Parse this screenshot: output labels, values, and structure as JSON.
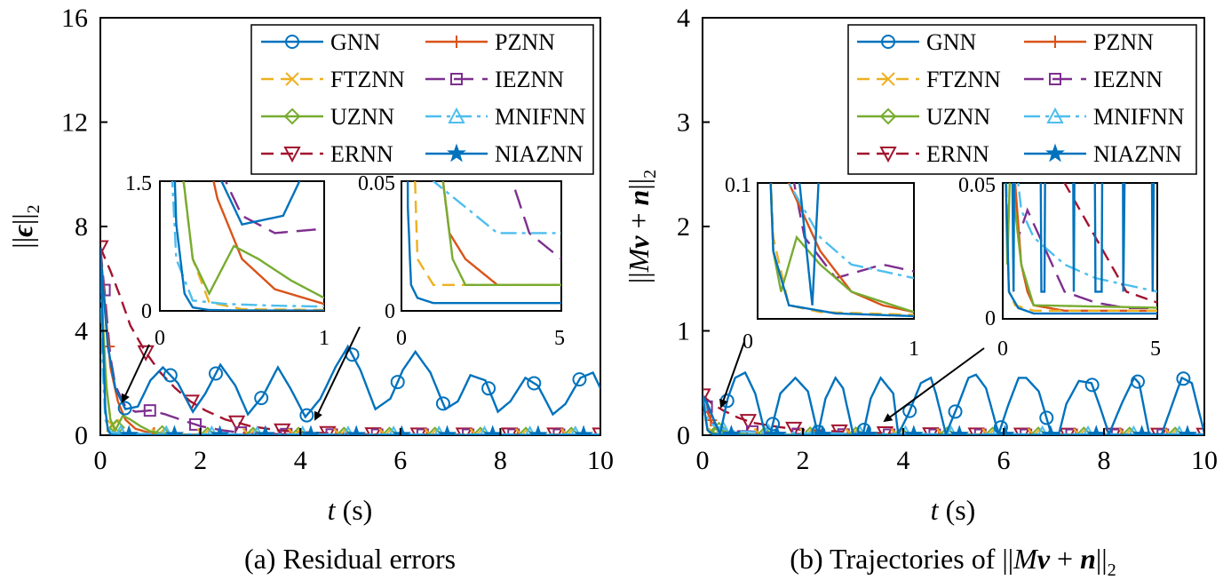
{
  "colors": {
    "GNN": "#0072BD",
    "PZNN": "#D95319",
    "FTZNN": "#EDB120",
    "IEZNN": "#7E2F8E",
    "UZNN": "#77AC30",
    "MNIFNN": "#4DBEEE",
    "ERNN": "#A2142F",
    "NIAZNN": "#0072BD"
  },
  "chart_data": [
    {
      "type": "line",
      "caption": "(a) Residual errors",
      "xlabel": "t (s)",
      "ylabel": "||ϵ||₂",
      "xlim": [
        0,
        10
      ],
      "ylim": [
        0,
        16
      ],
      "xticks": [
        "0",
        "2",
        "4",
        "6",
        "8",
        "10"
      ],
      "yticks": [
        "0",
        "4",
        "8",
        "12",
        "16"
      ],
      "legend": [
        "GNN",
        "PZNN",
        "FTZNN",
        "IEZNN",
        "UZNN",
        "MNIFNN",
        "ERNN",
        "NIAZNN"
      ],
      "legend_position": "top-right",
      "series": [
        {
          "name": "GNN",
          "t": [
            0,
            0.05,
            0.15,
            0.3,
            0.5,
            0.75,
            1.0,
            1.25,
            1.55,
            1.85,
            2.1,
            2.4,
            2.7,
            2.95,
            3.25,
            3.55,
            3.8,
            4.1,
            4.4,
            4.7,
            4.95,
            5.2,
            5.5,
            5.8,
            6.05,
            6.3,
            6.6,
            6.9,
            7.15,
            7.4,
            7.7,
            7.95,
            8.2,
            8.5,
            8.75,
            9.05,
            9.3,
            9.6,
            9.85,
            10
          ],
          "y": [
            7.2,
            5.8,
            3.4,
            1.8,
            1.0,
            1.1,
            2.1,
            2.6,
            2.0,
            0.9,
            1.6,
            2.7,
            1.9,
            0.8,
            1.5,
            2.6,
            1.8,
            0.7,
            1.4,
            2.6,
            3.4,
            2.5,
            1.0,
            1.4,
            2.5,
            3.2,
            2.4,
            1.0,
            1.3,
            2.3,
            2.1,
            0.9,
            1.3,
            2.2,
            1.9,
            0.8,
            1.2,
            2.2,
            2.4,
            1.8
          ]
        },
        {
          "name": "PZNN",
          "t": [
            0,
            0.1,
            0.2,
            0.35,
            0.5,
            0.7,
            1.0,
            1.5,
            2,
            3,
            5,
            10
          ],
          "y": [
            7.2,
            4.8,
            2.6,
            1.3,
            0.6,
            0.25,
            0.08,
            0.03,
            0.02,
            0.01,
            0.01,
            0.01
          ]
        },
        {
          "name": "FTZNN",
          "t": [
            0,
            0.05,
            0.1,
            0.2,
            0.3,
            0.5,
            1,
            10
          ],
          "y": [
            7.2,
            4.5,
            2.2,
            0.6,
            0.1,
            0.02,
            0.01,
            0.01
          ]
        },
        {
          "name": "IEZNN",
          "t": [
            0,
            0.1,
            0.2,
            0.3,
            0.5,
            0.7,
            1.0,
            1.3,
            1.6,
            2.0,
            2.4,
            2.8,
            3.2,
            4,
            5,
            10
          ],
          "y": [
            7.2,
            5.2,
            3.0,
            1.9,
            1.1,
            0.9,
            0.95,
            0.8,
            0.6,
            0.35,
            0.2,
            0.1,
            0.06,
            0.03,
            0.02,
            0.02
          ]
        },
        {
          "name": "UZNN",
          "t": [
            0,
            0.05,
            0.12,
            0.2,
            0.3,
            0.45,
            0.6,
            0.8,
            1.0,
            1.3,
            1.6,
            2,
            10
          ],
          "y": [
            7.2,
            4.4,
            1.9,
            0.6,
            0.2,
            0.75,
            0.6,
            0.35,
            0.15,
            0.05,
            0.02,
            0.01,
            0.01
          ]
        },
        {
          "name": "MNIFNN",
          "t": [
            0,
            0.04,
            0.1,
            0.2,
            0.4,
            0.7,
            1.0,
            2,
            3,
            5,
            10
          ],
          "y": [
            7.2,
            2.8,
            0.6,
            0.12,
            0.08,
            0.06,
            0.05,
            0.04,
            0.03,
            0.03,
            0.03
          ]
        },
        {
          "name": "ERNN",
          "t": [
            0,
            0.2,
            0.4,
            0.6,
            0.9,
            1.2,
            1.5,
            1.8,
            2.1,
            2.5,
            3.0,
            3.5,
            4.0,
            4.5,
            5.0,
            5.5,
            6,
            7,
            10
          ],
          "y": [
            7.2,
            6.3,
            5.3,
            4.2,
            3.2,
            2.4,
            1.8,
            1.3,
            0.95,
            0.6,
            0.35,
            0.2,
            0.12,
            0.08,
            0.05,
            0.03,
            0.02,
            0.02,
            0.02
          ]
        },
        {
          "name": "NIAZNN",
          "t": [
            0,
            0.05,
            0.1,
            0.15,
            0.2,
            0.3,
            0.5,
            1,
            10
          ],
          "y": [
            7.2,
            3.8,
            1.0,
            0.2,
            0.04,
            0.01,
            0.005,
            0.003,
            0.003
          ]
        }
      ],
      "insets": [
        {
          "xlim": [
            0,
            1
          ],
          "ylim": [
            0,
            1.5
          ],
          "xticks": [
            "0",
            "1"
          ],
          "yticks": [
            "0",
            "1.5"
          ]
        },
        {
          "xlim": [
            0,
            5
          ],
          "ylim": [
            0,
            0.05
          ],
          "xticks": [
            "0",
            "5"
          ],
          "yticks": [
            "0",
            "0.05"
          ]
        }
      ]
    },
    {
      "type": "line",
      "caption": "(b) Trajectories of ||Mv + n||₂",
      "xlabel": "t (s)",
      "ylabel": "||Mv + n||₂",
      "xlim": [
        0,
        10
      ],
      "ylim": [
        0,
        4
      ],
      "xticks": [
        "0",
        "2",
        "4",
        "6",
        "8",
        "10"
      ],
      "yticks": [
        "0",
        "1",
        "2",
        "3",
        "4"
      ],
      "legend": [
        "GNN",
        "PZNN",
        "FTZNN",
        "IEZNN",
        "UZNN",
        "MNIFNN",
        "ERNN",
        "NIAZNN"
      ],
      "legend_position": "top-right",
      "series": [
        {
          "name": "GNN",
          "t": [
            0,
            0.1,
            0.25,
            0.35,
            0.5,
            0.65,
            0.85,
            1.05,
            1.25,
            1.35,
            1.55,
            1.85,
            2.1,
            2.3,
            2.45,
            2.65,
            2.8,
            3.0,
            3.2,
            3.35,
            3.55,
            3.8,
            3.9,
            4.1,
            4.35,
            4.55,
            4.65,
            4.85,
            5.1,
            5.3,
            5.45,
            5.65,
            5.9,
            6.1,
            6.3,
            6.45,
            6.7,
            6.95,
            7.1,
            7.25,
            7.5,
            7.75,
            7.9,
            8.1,
            8.35,
            8.6,
            8.7,
            8.9,
            9.15,
            9.4,
            9.55,
            9.75,
            10
          ],
          "y": [
            0.38,
            0.3,
            0.12,
            0.01,
            0.35,
            0.55,
            0.6,
            0.4,
            0.01,
            0.01,
            0.4,
            0.55,
            0.42,
            0.01,
            0.35,
            0.55,
            0.45,
            0.01,
            0.01,
            0.35,
            0.55,
            0.4,
            0.01,
            0.2,
            0.5,
            0.55,
            0.4,
            0.01,
            0.3,
            0.55,
            0.58,
            0.45,
            0.01,
            0.3,
            0.55,
            0.55,
            0.42,
            0.01,
            0.01,
            0.3,
            0.52,
            0.5,
            0.3,
            0.01,
            0.3,
            0.55,
            0.5,
            0.01,
            0.01,
            0.35,
            0.55,
            0.5,
            0.02
          ]
        },
        {
          "name": "PZNN",
          "t": [
            0,
            0.1,
            0.2,
            0.4,
            0.6,
            0.8,
            1,
            2,
            10
          ],
          "y": [
            0.38,
            0.22,
            0.1,
            0.05,
            0.02,
            0.01,
            0.005,
            0.003,
            0.003
          ]
        },
        {
          "name": "FTZNN",
          "t": [
            0,
            0.05,
            0.1,
            0.2,
            0.4,
            1,
            10
          ],
          "y": [
            0.38,
            0.2,
            0.06,
            0.01,
            0.005,
            0.003,
            0.003
          ]
        },
        {
          "name": "IEZNN",
          "t": [
            0,
            0.1,
            0.2,
            0.3,
            0.5,
            0.8,
            1.2,
            1.6,
            2,
            3,
            4,
            10
          ],
          "y": [
            0.38,
            0.25,
            0.12,
            0.06,
            0.03,
            0.04,
            0.03,
            0.02,
            0.01,
            0.006,
            0.004,
            0.004
          ]
        },
        {
          "name": "UZNN",
          "t": [
            0,
            0.05,
            0.1,
            0.15,
            0.25,
            0.4,
            0.6,
            1,
            10
          ],
          "y": [
            0.38,
            0.2,
            0.05,
            0.02,
            0.06,
            0.04,
            0.02,
            0.005,
            0.003
          ]
        },
        {
          "name": "MNIFNN",
          "t": [
            0,
            0.05,
            0.1,
            0.2,
            0.4,
            0.6,
            1,
            2,
            3,
            5,
            10
          ],
          "y": [
            0.38,
            0.3,
            0.15,
            0.1,
            0.06,
            0.04,
            0.03,
            0.02,
            0.015,
            0.01,
            0.01
          ]
        },
        {
          "name": "ERNN",
          "t": [
            0,
            0.2,
            0.4,
            0.7,
            1,
            1.5,
            2,
            2.5,
            3,
            3.5,
            4,
            5,
            6,
            10
          ],
          "y": [
            0.38,
            0.3,
            0.24,
            0.17,
            0.12,
            0.08,
            0.05,
            0.04,
            0.03,
            0.02,
            0.01,
            0.006,
            0.004,
            0.003
          ]
        },
        {
          "name": "NIAZNN",
          "t": [
            0,
            0.05,
            0.1,
            0.2,
            0.5,
            1,
            10
          ],
          "y": [
            0.38,
            0.2,
            0.05,
            0.01,
            0.004,
            0.002,
            0.002
          ]
        }
      ],
      "insets": [
        {
          "xlim": [
            0,
            1
          ],
          "ylim": [
            0,
            0.1
          ],
          "xticks": [
            "0",
            "1"
          ],
          "yticks": [
            "0.1"
          ]
        },
        {
          "xlim": [
            0,
            5
          ],
          "ylim": [
            0,
            0.05
          ],
          "xticks": [
            "0",
            "5"
          ],
          "yticks": [
            "0",
            "0.05"
          ]
        }
      ]
    }
  ]
}
